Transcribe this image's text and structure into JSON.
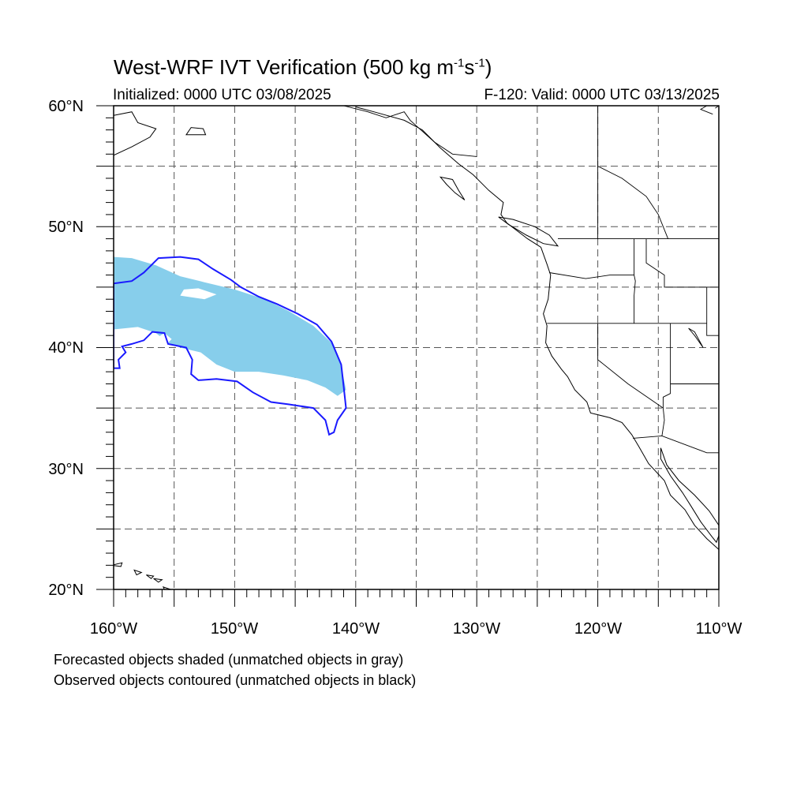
{
  "title": {
    "main": "West-WRF IVT Verification (500 kg m",
    "unit_m_exp": "-1",
    "unit_s": "s",
    "unit_s_exp": "-1",
    "close": ")"
  },
  "subtitle": {
    "initialized": "Initialized: 0000 UTC 03/08/2025",
    "valid": "F-120: Valid: 0000 UTC 03/13/2025"
  },
  "axes": {
    "lat_labels": [
      "60°N",
      "50°N",
      "40°N",
      "30°N",
      "20°N"
    ],
    "lon_labels": [
      "160°W",
      "150°W",
      "140°W",
      "130°W",
      "120°W",
      "110°W"
    ],
    "lat_range": [
      20,
      60
    ],
    "lon_range": [
      -160,
      -110
    ],
    "grid": true
  },
  "legend": {
    "line1": "Forecasted objects shaded (unmatched objects in gray)",
    "line2": "Observed objects contoured (unmatched objects in black)"
  },
  "colors": {
    "forecast_fill": "#87ceeb",
    "observed_contour": "#1a1aff",
    "coastline": "#000000",
    "grid": "#555555"
  },
  "objects": {
    "forecast_shaded": [
      {
        "lon": -160,
        "lat": 47.5
      },
      {
        "lon": -158.5,
        "lat": 47.4
      },
      {
        "lon": -156.5,
        "lat": 46.8
      },
      {
        "lon": -154.5,
        "lat": 45.9
      },
      {
        "lon": -152.5,
        "lat": 45.4
      },
      {
        "lon": -150,
        "lat": 44.8
      },
      {
        "lon": -147.5,
        "lat": 44.0
      },
      {
        "lon": -145.5,
        "lat": 43.0
      },
      {
        "lon": -143.5,
        "lat": 41.8
      },
      {
        "lon": -141.8,
        "lat": 40.2
      },
      {
        "lon": -141.2,
        "lat": 38.5
      },
      {
        "lon": -140.8,
        "lat": 36.5
      },
      {
        "lon": -141.5,
        "lat": 36.0
      },
      {
        "lon": -142.5,
        "lat": 36.7
      },
      {
        "lon": -144,
        "lat": 37.3
      },
      {
        "lon": -146,
        "lat": 37.7
      },
      {
        "lon": -148,
        "lat": 38.0
      },
      {
        "lon": -150,
        "lat": 38.0
      },
      {
        "lon": -151.5,
        "lat": 38.6
      },
      {
        "lon": -152.8,
        "lat": 39.6
      },
      {
        "lon": -154.5,
        "lat": 40.0
      },
      {
        "lon": -155.5,
        "lat": 40.4
      },
      {
        "lon": -156.5,
        "lat": 41.2
      },
      {
        "lon": -158,
        "lat": 41.7
      },
      {
        "lon": -160,
        "lat": 41.5
      }
    ],
    "forecast_hole": [
      {
        "lon": -154.5,
        "lat": 44.3
      },
      {
        "lon": -152.5,
        "lat": 44.0
      },
      {
        "lon": -151.5,
        "lat": 44.4
      },
      {
        "lon": -153,
        "lat": 44.9
      },
      {
        "lon": -154.2,
        "lat": 44.8
      }
    ],
    "forecast_hole2": [
      {
        "lon": -156.3,
        "lat": 40.9
      },
      {
        "lon": -155.6,
        "lat": 40.3
      },
      {
        "lon": -155.2,
        "lat": 40.7
      },
      {
        "lon": -155.8,
        "lat": 41.2
      }
    ],
    "observed_contour": [
      {
        "lon": -160,
        "lat": 45.3
      },
      {
        "lon": -158.5,
        "lat": 45.5
      },
      {
        "lon": -157.5,
        "lat": 46.2
      },
      {
        "lon": -156.3,
        "lat": 47.4
      },
      {
        "lon": -154.5,
        "lat": 47.5
      },
      {
        "lon": -153.0,
        "lat": 47.3
      },
      {
        "lon": -151.8,
        "lat": 46.5
      },
      {
        "lon": -150.3,
        "lat": 45.6
      },
      {
        "lon": -149.5,
        "lat": 45.0
      },
      {
        "lon": -148.0,
        "lat": 44.2
      },
      {
        "lon": -146.5,
        "lat": 43.6
      },
      {
        "lon": -144.8,
        "lat": 42.8
      },
      {
        "lon": -143.2,
        "lat": 41.9
      },
      {
        "lon": -142.0,
        "lat": 40.5
      },
      {
        "lon": -141.2,
        "lat": 38.6
      },
      {
        "lon": -141.0,
        "lat": 36.8
      },
      {
        "lon": -140.8,
        "lat": 35.0
      },
      {
        "lon": -141.5,
        "lat": 34.0
      },
      {
        "lon": -141.8,
        "lat": 33.0
      },
      {
        "lon": -142.2,
        "lat": 32.8
      },
      {
        "lon": -142.5,
        "lat": 34.0
      },
      {
        "lon": -143.5,
        "lat": 35.0
      },
      {
        "lon": -145.5,
        "lat": 35.3
      },
      {
        "lon": -147.0,
        "lat": 35.5
      },
      {
        "lon": -148.5,
        "lat": 36.3
      },
      {
        "lon": -149.8,
        "lat": 37.2
      },
      {
        "lon": -151.5,
        "lat": 37.4
      },
      {
        "lon": -153.0,
        "lat": 37.3
      },
      {
        "lon": -153.6,
        "lat": 37.8
      },
      {
        "lon": -153.5,
        "lat": 39.0
      },
      {
        "lon": -154.0,
        "lat": 40.0
      },
      {
        "lon": -155.5,
        "lat": 40.3
      },
      {
        "lon": -155.8,
        "lat": 41.2
      },
      {
        "lon": -156.8,
        "lat": 41.3
      },
      {
        "lon": -157.5,
        "lat": 40.6
      },
      {
        "lon": -158.5,
        "lat": 40.3
      },
      {
        "lon": -159.3,
        "lat": 40.1
      },
      {
        "lon": -159.0,
        "lat": 39.6
      },
      {
        "lon": -159.6,
        "lat": 39.0
      },
      {
        "lon": -159.5,
        "lat": 38.3
      },
      {
        "lon": -160,
        "lat": 38.3
      }
    ]
  },
  "map_features": {
    "coastline": [
      {
        "lon": -110,
        "lat": 23.3
      },
      {
        "lon": -111,
        "lat": 24.2
      },
      {
        "lon": -112,
        "lat": 25.3
      },
      {
        "lon": -112.8,
        "lat": 26.6
      },
      {
        "lon": -114,
        "lat": 27.8
      },
      {
        "lon": -114.5,
        "lat": 29.0
      },
      {
        "lon": -115.8,
        "lat": 30.4
      },
      {
        "lon": -116.6,
        "lat": 31.8
      },
      {
        "lon": -117.2,
        "lat": 32.8
      },
      {
        "lon": -118.0,
        "lat": 33.8
      },
      {
        "lon": -119.0,
        "lat": 34.2
      },
      {
        "lon": -120.6,
        "lat": 34.6
      },
      {
        "lon": -120.9,
        "lat": 35.5
      },
      {
        "lon": -121.9,
        "lat": 36.5
      },
      {
        "lon": -122.5,
        "lat": 37.6
      },
      {
        "lon": -123.0,
        "lat": 38.2
      },
      {
        "lon": -123.8,
        "lat": 39.3
      },
      {
        "lon": -124.3,
        "lat": 40.4
      },
      {
        "lon": -124.2,
        "lat": 41.8
      },
      {
        "lon": -124.5,
        "lat": 42.8
      },
      {
        "lon": -124.1,
        "lat": 44.0
      },
      {
        "lon": -123.9,
        "lat": 46.0
      },
      {
        "lon": -124.2,
        "lat": 46.9
      },
      {
        "lon": -124.7,
        "lat": 48.3
      },
      {
        "lon": -125.8,
        "lat": 49.0
      },
      {
        "lon": -127.5,
        "lat": 50.3
      },
      {
        "lon": -128.0,
        "lat": 51.0
      },
      {
        "lon": -127.8,
        "lat": 52.0
      },
      {
        "lon": -129.0,
        "lat": 53.0
      },
      {
        "lon": -130.3,
        "lat": 54.3
      },
      {
        "lon": -131.5,
        "lat": 55.2
      },
      {
        "lon": -133.0,
        "lat": 56.5
      },
      {
        "lon": -134.5,
        "lat": 58.0
      },
      {
        "lon": -136.0,
        "lat": 58.8
      },
      {
        "lon": -138.5,
        "lat": 59.5
      },
      {
        "lon": -140,
        "lat": 59.9
      }
    ],
    "gulf_of_california": [
      {
        "lon": -114.8,
        "lat": 31.7
      },
      {
        "lon": -114.3,
        "lat": 30.3
      },
      {
        "lon": -113.3,
        "lat": 29.0
      },
      {
        "lon": -112.0,
        "lat": 27.8
      },
      {
        "lon": -110.8,
        "lat": 26.5
      },
      {
        "lon": -109.8,
        "lat": 25.0
      },
      {
        "lon": -110.2,
        "lat": 23.9
      },
      {
        "lon": -110.6,
        "lat": 24.4
      },
      {
        "lon": -111.5,
        "lat": 25.6
      },
      {
        "lon": -112.3,
        "lat": 26.9
      },
      {
        "lon": -113.0,
        "lat": 28.0
      },
      {
        "lon": -114.0,
        "lat": 29.4
      },
      {
        "lon": -114.8,
        "lat": 30.8
      },
      {
        "lon": -114.8,
        "lat": 31.7
      }
    ],
    "vancouver_island": [
      {
        "lon": -123.3,
        "lat": 48.4
      },
      {
        "lon": -124.5,
        "lat": 48.6
      },
      {
        "lon": -125.9,
        "lat": 49.3
      },
      {
        "lon": -127.4,
        "lat": 50.2
      },
      {
        "lon": -128.2,
        "lat": 50.8
      },
      {
        "lon": -127.0,
        "lat": 50.6
      },
      {
        "lon": -125.2,
        "lat": 50.0
      },
      {
        "lon": -124.0,
        "lat": 49.3
      },
      {
        "lon": -123.3,
        "lat": 48.4
      }
    ],
    "haida_gwaii": [
      {
        "lon": -131.0,
        "lat": 52.2
      },
      {
        "lon": -131.8,
        "lat": 52.8
      },
      {
        "lon": -132.5,
        "lat": 53.5
      },
      {
        "lon": -133.0,
        "lat": 54.1
      },
      {
        "lon": -132.0,
        "lat": 53.9
      },
      {
        "lon": -131.5,
        "lat": 53.0
      },
      {
        "lon": -131.0,
        "lat": 52.2
      }
    ],
    "alaska_peninsula": [
      {
        "lon": -160,
        "lat": 55.9
      },
      {
        "lon": -158.5,
        "lat": 56.6
      },
      {
        "lon": -157.0,
        "lat": 57.4
      },
      {
        "lon": -156.5,
        "lat": 58.1
      },
      {
        "lon": -158.0,
        "lat": 58.6
      },
      {
        "lon": -158.5,
        "lat": 59.5
      },
      {
        "lon": -160,
        "lat": 59.2
      }
    ],
    "kodiak": [
      {
        "lon": -154.0,
        "lat": 57.6
      },
      {
        "lon": -152.4,
        "lat": 57.6
      },
      {
        "lon": -152.6,
        "lat": 58.1
      },
      {
        "lon": -153.6,
        "lat": 58.2
      },
      {
        "lon": -154.0,
        "lat": 57.6
      }
    ],
    "hawaii_islands": [
      [
        {
          "lon": -160.2,
          "lat": 22.0
        },
        {
          "lon": -159.3,
          "lat": 22.2
        },
        {
          "lon": -159.4,
          "lat": 21.9
        },
        {
          "lon": -160.2,
          "lat": 22.0
        }
      ],
      [
        {
          "lon": -158.3,
          "lat": 21.6
        },
        {
          "lon": -157.7,
          "lat": 21.4
        },
        {
          "lon": -158.1,
          "lat": 21.2
        },
        {
          "lon": -158.3,
          "lat": 21.6
        }
      ],
      [
        {
          "lon": -157.3,
          "lat": 21.2
        },
        {
          "lon": -156.7,
          "lat": 21.1
        },
        {
          "lon": -156.9,
          "lat": 20.9
        },
        {
          "lon": -157.3,
          "lat": 21.2
        }
      ],
      [
        {
          "lon": -156.7,
          "lat": 20.9
        },
        {
          "lon": -156.0,
          "lat": 20.8
        },
        {
          "lon": -156.3,
          "lat": 20.6
        },
        {
          "lon": -156.7,
          "lat": 20.9
        }
      ],
      [
        {
          "lon": -155.9,
          "lat": 20.2
        },
        {
          "lon": -155.0,
          "lat": 19.9
        },
        {
          "lon": -155.5,
          "lat": 19.4
        },
        {
          "lon": -155.9,
          "lat": 20.2
        }
      ]
    ],
    "borders": [
      [
        {
          "lon": -123.3,
          "lat": 49.0
        },
        {
          "lon": -110,
          "lat": 49.0
        }
      ],
      [
        {
          "lon": -117.0,
          "lat": 49.0
        },
        {
          "lon": -117.0,
          "lat": 46.0
        },
        {
          "lon": -116.9,
          "lat": 45.5
        },
        {
          "lon": -117.0,
          "lat": 44.3
        },
        {
          "lon": -117.0,
          "lat": 42.0
        }
      ],
      [
        {
          "lon": -124.0,
          "lat": 46.2
        },
        {
          "lon": -121.0,
          "lat": 45.7
        },
        {
          "lon": -119.0,
          "lat": 46.0
        },
        {
          "lon": -117.0,
          "lat": 46.0
        }
      ],
      [
        {
          "lon": -124.2,
          "lat": 42.0
        },
        {
          "lon": -111.0,
          "lat": 42.0
        }
      ],
      [
        {
          "lon": -120.0,
          "lat": 42.0
        },
        {
          "lon": -120.0,
          "lat": 39.0
        },
        {
          "lon": -117.5,
          "lat": 37.0
        },
        {
          "lon": -114.6,
          "lat": 35.0
        }
      ],
      [
        {
          "lon": -114.0,
          "lat": 42.0
        },
        {
          "lon": -114.0,
          "lat": 36.2
        },
        {
          "lon": -114.6,
          "lat": 35.9
        },
        {
          "lon": -114.6,
          "lat": 35.0
        }
      ],
      [
        {
          "lon": -114.0,
          "lat": 37.0
        },
        {
          "lon": -110,
          "lat": 37.0
        }
      ],
      [
        {
          "lon": -111.0,
          "lat": 45.0
        },
        {
          "lon": -111.0,
          "lat": 41.0
        },
        {
          "lon": -110,
          "lat": 41.0
        }
      ],
      [
        {
          "lon": -116.0,
          "lat": 49.0
        },
        {
          "lon": -116.0,
          "lat": 48.0
        },
        {
          "lon": -116.0,
          "lat": 47.0
        },
        {
          "lon": -114.5,
          "lat": 46.0
        },
        {
          "lon": -114.5,
          "lat": 45.0
        },
        {
          "lon": -111.0,
          "lat": 45.0
        },
        {
          "lon": -110,
          "lat": 45.0
        }
      ],
      [
        {
          "lon": -117.1,
          "lat": 32.5
        },
        {
          "lon": -114.7,
          "lat": 32.7
        },
        {
          "lon": -111.0,
          "lat": 31.3
        },
        {
          "lon": -110,
          "lat": 31.3
        }
      ],
      [
        {
          "lon": -114.7,
          "lat": 32.7
        },
        {
          "lon": -114.5,
          "lat": 34.0
        },
        {
          "lon": -114.6,
          "lat": 35.0
        }
      ],
      [
        {
          "lon": -120.0,
          "lat": 55.0
        },
        {
          "lon": -118.0,
          "lat": 54.0
        },
        {
          "lon": -116.0,
          "lat": 52.5
        },
        {
          "lon": -115.0,
          "lat": 51.0
        },
        {
          "lon": -114.2,
          "lat": 49.0
        }
      ],
      [
        {
          "lon": -141.0,
          "lat": 60.0
        },
        {
          "lon": -139.0,
          "lat": 59.5
        },
        {
          "lon": -137.5,
          "lat": 59.0
        },
        {
          "lon": -136.0,
          "lat": 59.5
        },
        {
          "lon": -135.5,
          "lat": 58.8
        },
        {
          "lon": -133.5,
          "lat": 57.0
        },
        {
          "lon": -132.0,
          "lat": 56.0
        },
        {
          "lon": -130.0,
          "lat": 55.8
        }
      ],
      [
        {
          "lon": -120.0,
          "lat": 60.0
        },
        {
          "lon": -120.0,
          "lat": 49.0
        }
      ],
      [
        {
          "lon": -111.3,
          "lat": 40.0
        },
        {
          "lon": -112.0,
          "lat": 41.3
        },
        {
          "lon": -112.5,
          "lat": 41.6
        },
        {
          "lon": -112.0,
          "lat": 41.0
        },
        {
          "lon": -111.3,
          "lat": 40.0
        }
      ],
      [
        {
          "lon": -110.3,
          "lat": 59.8
        },
        {
          "lon": -110,
          "lat": 60.0
        }
      ],
      [
        {
          "lon": -110.5,
          "lat": 59.3
        },
        {
          "lon": -111.5,
          "lat": 59.7
        },
        {
          "lon": -111,
          "lat": 60.0
        }
      ]
    ]
  }
}
